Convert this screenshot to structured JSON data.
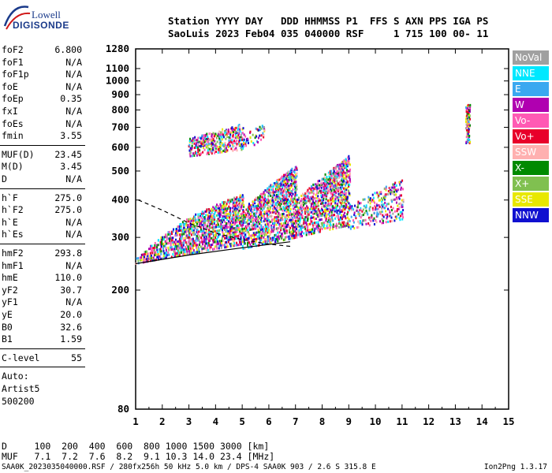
{
  "logo": {
    "line1": "Lowell",
    "line2": "DIGISONDE"
  },
  "header": {
    "line1": "Station YYYY DAY   DDD HHMMSS P1  FFS S AXN PPS IGA PS",
    "line2": "SaoLuis 2023 Feb04 035 040000 RSF     1 715 100 00- 11"
  },
  "params": {
    "group1": [
      {
        "name": "foF2",
        "value": "6.800"
      },
      {
        "name": "foF1",
        "value": "N/A"
      },
      {
        "name": "foF1p",
        "value": "N/A"
      },
      {
        "name": "foE",
        "value": "N/A"
      },
      {
        "name": "foEp",
        "value": "0.35"
      },
      {
        "name": "fxI",
        "value": "N/A"
      },
      {
        "name": "foEs",
        "value": "N/A"
      },
      {
        "name": "fmin",
        "value": "3.55"
      }
    ],
    "group2": [
      {
        "name": "MUF(D)",
        "value": "23.45"
      },
      {
        "name": "M(D)",
        "value": "3.45"
      },
      {
        "name": "D",
        "value": "N/A"
      }
    ],
    "group3": [
      {
        "name": "h`F",
        "value": "275.0"
      },
      {
        "name": "h`F2",
        "value": "275.0"
      },
      {
        "name": "h`E",
        "value": "N/A"
      },
      {
        "name": "h`Es",
        "value": "N/A"
      }
    ],
    "group4": [
      {
        "name": "hmF2",
        "value": "293.8"
      },
      {
        "name": "hmF1",
        "value": "N/A"
      },
      {
        "name": "hmE",
        "value": "110.0"
      },
      {
        "name": "yF2",
        "value": "30.7"
      },
      {
        "name": "yF1",
        "value": "N/A"
      },
      {
        "name": "yE",
        "value": "20.0"
      },
      {
        "name": "B0",
        "value": "32.6"
      },
      {
        "name": "B1",
        "value": "1.59"
      }
    ],
    "c_level": {
      "name": "C-level",
      "value": "55"
    },
    "auto": [
      "Auto:",
      "Artist5",
      "500200"
    ]
  },
  "legend": [
    {
      "label": "NoVal",
      "color": "#a0a0a0"
    },
    {
      "label": "NNE",
      "color": "#00e8ff"
    },
    {
      "label": "E",
      "color": "#3aa8f0"
    },
    {
      "label": "W",
      "color": "#b000b0"
    },
    {
      "label": "Vo-",
      "color": "#ff5ab4"
    },
    {
      "label": "Vo+",
      "color": "#e8002a"
    },
    {
      "label": "SSW",
      "color": "#ffb0b0"
    },
    {
      "label": "X-",
      "color": "#008a00"
    },
    {
      "label": "X+",
      "color": "#80c050"
    },
    {
      "label": "SSE",
      "color": "#e8e800"
    },
    {
      "label": "NNW",
      "color": "#1010d0"
    }
  ],
  "chart_data": {
    "type": "scatter",
    "xlabel": "",
    "ylabel": "",
    "xlim": [
      1,
      15
    ],
    "ylim": [
      80,
      1280
    ],
    "y_scale": "log",
    "x_ticks": [
      "1",
      "2",
      "3",
      "4",
      "5",
      "6",
      "7",
      "8",
      "9",
      "10",
      "11",
      "12",
      "13",
      "14",
      "15"
    ],
    "y_ticks": [
      {
        "value": 80,
        "label": "80"
      },
      {
        "value": 200,
        "label": "200"
      },
      {
        "value": 300,
        "label": "300"
      },
      {
        "value": 400,
        "label": "400"
      },
      {
        "value": 500,
        "label": "500"
      },
      {
        "value": 600,
        "label": "600"
      },
      {
        "value": 700,
        "label": "700"
      },
      {
        "value": 800,
        "label": "800"
      },
      {
        "value": 900,
        "label": "900"
      },
      {
        "value": 1000,
        "label": "1000"
      },
      {
        "value": 1100,
        "label": "1100"
      },
      {
        "value": 1280,
        "label": "1280"
      }
    ],
    "echo_regions": [
      {
        "f": [
          1.0,
          3.0
        ],
        "h_lo": [
          245,
          265
        ],
        "h_hi": [
          255,
          350
        ],
        "density": 1.0
      },
      {
        "f": [
          3.0,
          5.0
        ],
        "h_lo": [
          265,
          285
        ],
        "h_hi": [
          350,
          420
        ],
        "density": 1.0
      },
      {
        "f": [
          5.0,
          7.0
        ],
        "h_lo": [
          275,
          300
        ],
        "h_hi": [
          370,
          520
        ],
        "density": 0.9
      },
      {
        "f": [
          7.0,
          9.0
        ],
        "h_lo": [
          300,
          330
        ],
        "h_hi": [
          400,
          560
        ],
        "density": 0.8
      },
      {
        "f": [
          9.0,
          11.0
        ],
        "h_lo": [
          320,
          345
        ],
        "h_hi": [
          380,
          470
        ],
        "density": 0.45
      },
      {
        "f": [
          3.0,
          5.0
        ],
        "h_lo": [
          560,
          590
        ],
        "h_hi": [
          640,
          720
        ],
        "density": 0.45
      },
      {
        "f": [
          5.0,
          5.8
        ],
        "h_lo": [
          600,
          620
        ],
        "h_hi": [
          660,
          720
        ],
        "density": 0.25
      },
      {
        "f": [
          13.4,
          13.5
        ],
        "h_lo": [
          620,
          620
        ],
        "h_hi": [
          830,
          830
        ],
        "density": 0.8
      }
    ],
    "trace_lines": [
      {
        "name": "virtual-trace",
        "points": [
          [
            1.0,
            245
          ],
          [
            3.0,
            262
          ],
          [
            5.0,
            277
          ],
          [
            6.8,
            290
          ]
        ],
        "style": "solid"
      },
      {
        "name": "profile-curve",
        "points": [
          [
            1.1,
            400
          ],
          [
            2.0,
            370
          ],
          [
            3.0,
            335
          ],
          [
            4.0,
            310
          ],
          [
            5.0,
            295
          ],
          [
            6.0,
            285
          ],
          [
            6.8,
            280
          ]
        ],
        "style": "dashed"
      }
    ]
  },
  "bottom": {
    "d_row": "D     100  200  400  600  800 1000 1500 3000 [km]",
    "muf_row": "MUF   7.1  7.2  7.6  8.2  9.1 10.3 14.0 23.4 [MHz]"
  },
  "footer": {
    "left": "SAA0K_2023035040000.RSF / 280fx256h 50 kHz 5.0 km / DPS-4 SAA0K 903 / 2.6 S 315.8 E",
    "version": "Ion2Png 1.3.17"
  }
}
